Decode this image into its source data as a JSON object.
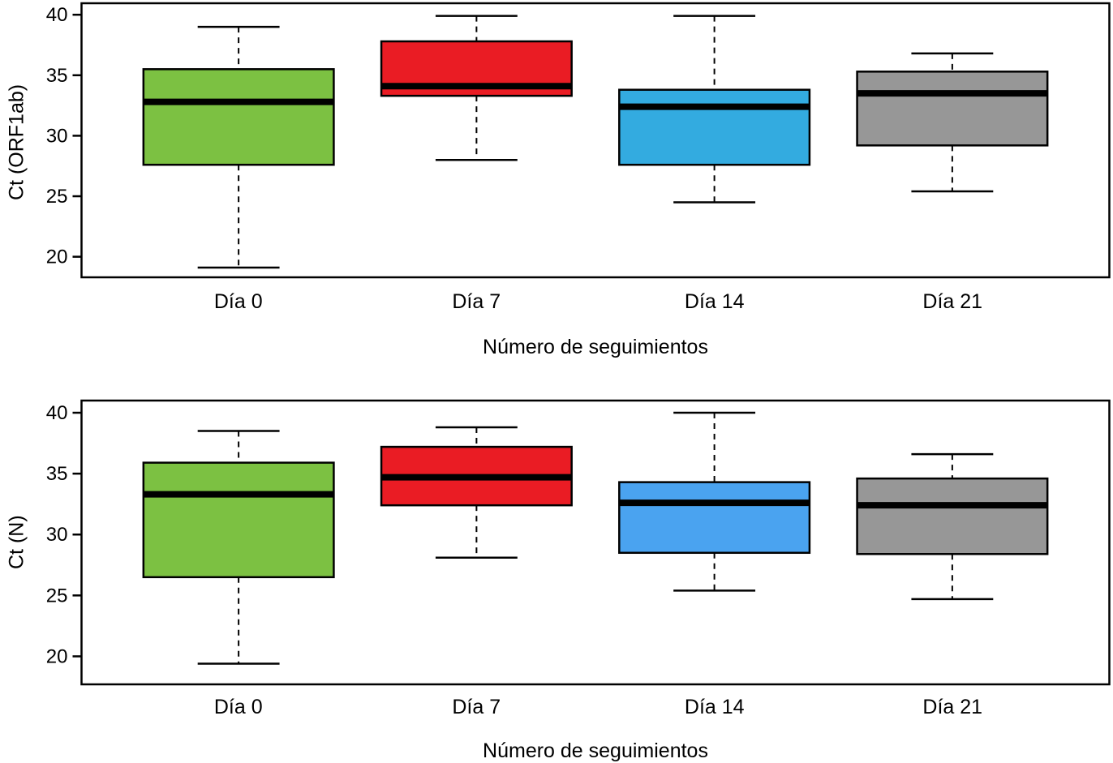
{
  "figure": {
    "background": "#ffffff",
    "frame_color": "#000000"
  },
  "chart_data": [
    {
      "type": "box",
      "title": "",
      "ylabel": "Ct (ORF1ab)",
      "xlabel": "Número de seguimientos",
      "categories": [
        "Día 0",
        "Día 7",
        "Día 14",
        "Día 21"
      ],
      "colors": [
        "#7CC142",
        "#EA1C24",
        "#33ABE0",
        "#979797"
      ],
      "yticks": [
        20,
        25,
        30,
        35,
        40
      ],
      "ylim": [
        18.3,
        40.95
      ],
      "grid": false,
      "legend": "none",
      "boxes": [
        {
          "category": "Día 0",
          "whislo": 19.1,
          "q1": 27.6,
          "med": 32.8,
          "q3": 35.5,
          "whishi": 39.0
        },
        {
          "category": "Día 7",
          "whislo": 28.0,
          "q1": 33.3,
          "med": 34.1,
          "q3": 37.8,
          "whishi": 39.9
        },
        {
          "category": "Día 14",
          "whislo": 24.5,
          "q1": 27.6,
          "med": 32.4,
          "q3": 33.8,
          "whishi": 39.9
        },
        {
          "category": "Día 21",
          "whislo": 25.4,
          "q1": 29.2,
          "med": 33.5,
          "q3": 35.3,
          "whishi": 36.8
        }
      ]
    },
    {
      "type": "box",
      "title": "",
      "ylabel": "Ct (N)",
      "xlabel": "Número de seguimientos",
      "categories": [
        "Día 0",
        "Día 7",
        "Día 14",
        "Día 21"
      ],
      "colors": [
        "#7CC142",
        "#EA1C24",
        "#4AA3F0",
        "#979797"
      ],
      "yticks": [
        20,
        25,
        30,
        35,
        40
      ],
      "ylim": [
        17.7,
        41.0
      ],
      "grid": false,
      "legend": "none",
      "boxes": [
        {
          "category": "Día 0",
          "whislo": 19.4,
          "q1": 26.5,
          "med": 33.3,
          "q3": 35.9,
          "whishi": 38.5
        },
        {
          "category": "Día 7",
          "whislo": 28.1,
          "q1": 32.4,
          "med": 34.7,
          "q3": 37.2,
          "whishi": 38.8
        },
        {
          "category": "Día 14",
          "whislo": 25.4,
          "q1": 28.5,
          "med": 32.6,
          "q3": 34.3,
          "whishi": 40.0
        },
        {
          "category": "Día 21",
          "whislo": 24.7,
          "q1": 28.4,
          "med": 32.4,
          "q3": 34.6,
          "whishi": 36.6
        }
      ]
    }
  ]
}
